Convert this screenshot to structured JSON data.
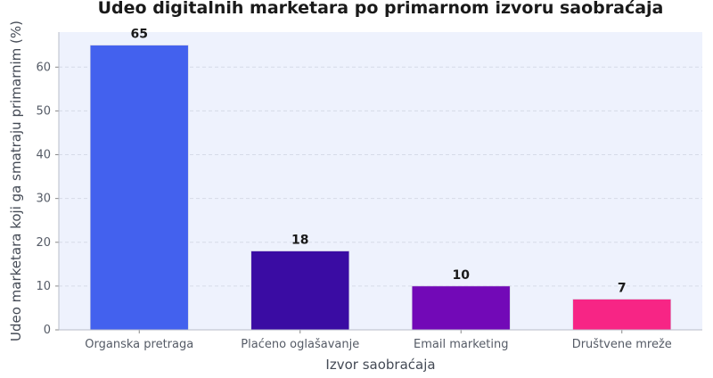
{
  "chart_data": {
    "type": "bar",
    "title": "Udeo digitalnih marketara po primarnom izvoru saobraćaja",
    "xlabel": "Izvor saobraćaja",
    "ylabel": "Udeo marketara koji ga smatraju primarnim (%)",
    "categories": [
      "Organska pretraga",
      "Plaćeno oglašavanje",
      "Email marketing",
      "Društvene mreže"
    ],
    "values": [
      65,
      18,
      10,
      7
    ],
    "colors": [
      "#4361ee",
      "#3a0ca3",
      "#7209b7",
      "#f72585"
    ],
    "ylim": [
      0,
      68
    ],
    "yticks": [
      0,
      10,
      20,
      30,
      40,
      50,
      60
    ],
    "grid": true,
    "plot_background": "#eef2fd"
  }
}
